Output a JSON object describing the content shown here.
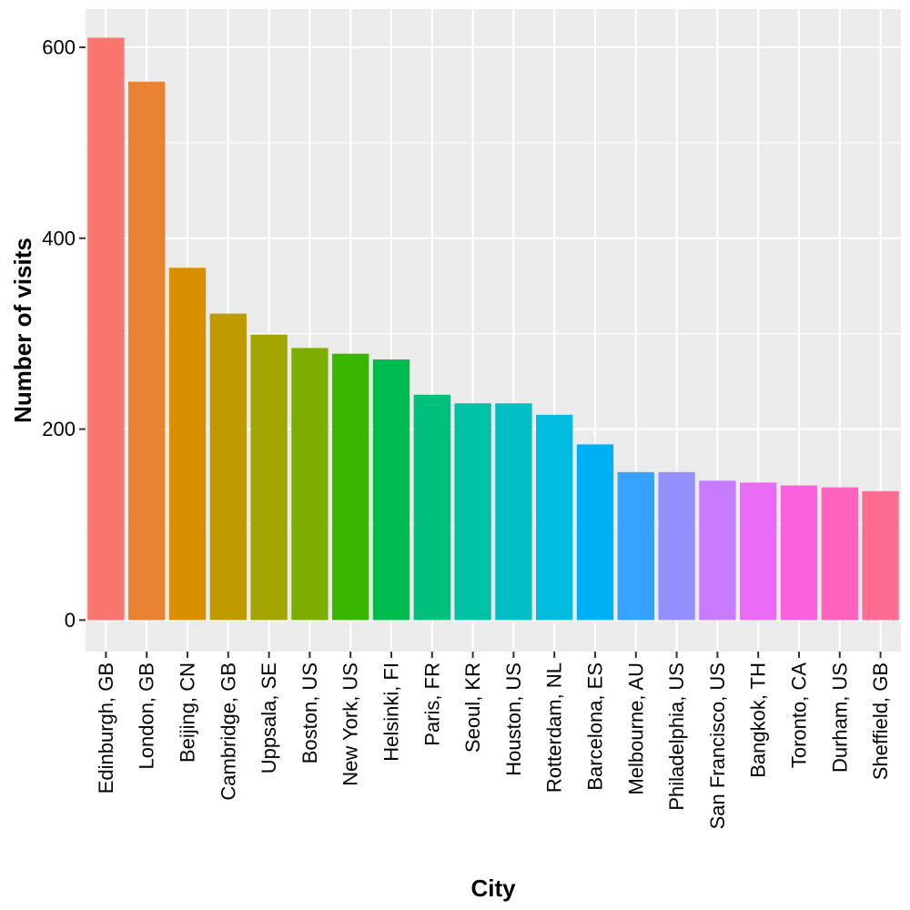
{
  "chart_data": {
    "type": "bar",
    "title": "",
    "xlabel": "City",
    "ylabel": "Number of visits",
    "ylim": [
      -33,
      640
    ],
    "yticks": [
      0,
      200,
      400,
      600
    ],
    "grid": true,
    "legend": "none",
    "panel_background": "#EBEBEB",
    "categories": [
      "Edinburgh, GB",
      "London, GB",
      "Beijing, CN",
      "Cambridge, GB",
      "Uppsala, SE",
      "Boston, US",
      "New York, US",
      "Helsinki, FI",
      "Paris, FR",
      "Seoul, KR",
      "Houston, US",
      "Rotterdam, NL",
      "Barcelona, ES",
      "Melbourne, AU",
      "Philadelphia, US",
      "San Francisco, US",
      "Bangkok, TH",
      "Toronto, CA",
      "Durham, US",
      "Sheffield, GB"
    ],
    "values": [
      610,
      564,
      369,
      321,
      299,
      285,
      279,
      273,
      236,
      227,
      227,
      215,
      184,
      155,
      155,
      146,
      144,
      141,
      139,
      135
    ],
    "colors": [
      "#F8766D",
      "#EA8331",
      "#D89000",
      "#C09B00",
      "#A3A500",
      "#7CAE00",
      "#39B600",
      "#00BB4E",
      "#00BF7D",
      "#00C1A3",
      "#00BFC4",
      "#00BAE0",
      "#00B0F6",
      "#35A2FF",
      "#9590FF",
      "#C77CFF",
      "#E76BF3",
      "#FA62DB",
      "#FF62BC",
      "#FF6C91"
    ]
  }
}
